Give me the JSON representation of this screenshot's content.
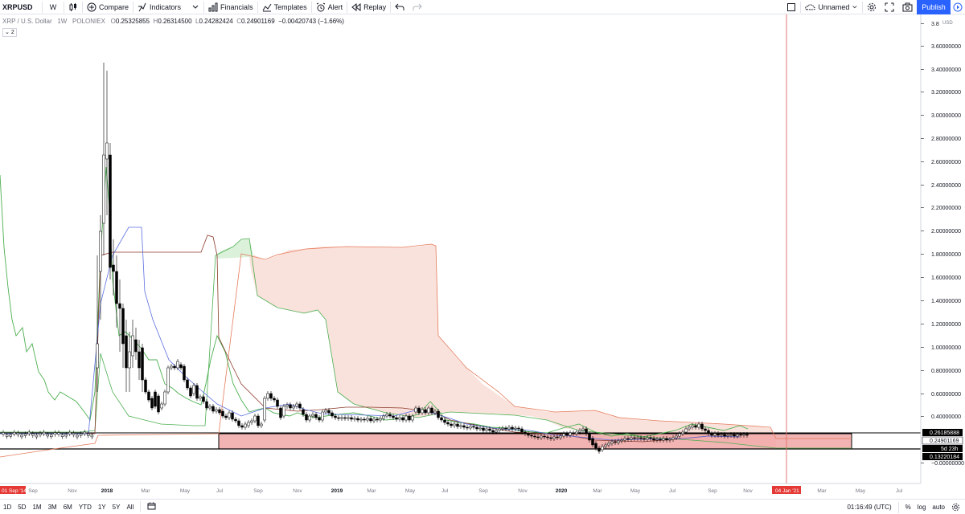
{
  "toolbar": {
    "symbol": "XRPUSD",
    "interval": "W",
    "compare": "Compare",
    "indicators": "Indicators",
    "financials": "Financials",
    "templates": "Templates",
    "alert": "Alert",
    "replay": "Replay",
    "layout_name": "Unnamed",
    "publish": "Publish"
  },
  "legend": {
    "title": "XRP / U.S. Dollar",
    "interval": "1W",
    "exchange": "POLONIEX",
    "o_label": "O",
    "o": "0.25325855",
    "h_label": "H",
    "h": "0.26314500",
    "l_label": "L",
    "l": "0.24282424",
    "c_label": "C",
    "c": "0.24901169",
    "change": "−0.00420743 (−1.66%)",
    "badge": "2"
  },
  "price_axis": {
    "currency": "USD",
    "labels": [
      "3.8",
      "3.60000000",
      "3.40000000",
      "3.20000000",
      "3.00000000",
      "2.80000000",
      "2.60000000",
      "2.40000000",
      "2.20000000",
      "2.00000000",
      "1.80000000",
      "1.60000000",
      "1.40000000",
      "1.20000000",
      "1.00000000",
      "0.80000000",
      "0.60000000",
      "0.40000000",
      "−0.00000000"
    ],
    "badges": {
      "upper": "0.26185888",
      "last": "0.24901169",
      "countdown": "5d 23h",
      "lower": "0.13220184"
    }
  },
  "time_axis": {
    "labels": [
      "Sep",
      "Nov",
      "2018",
      "Mar",
      "May",
      "Jul",
      "Sep",
      "Nov",
      "2019",
      "Mar",
      "May",
      "Jul",
      "Sep",
      "Nov",
      "2020",
      "Mar",
      "May",
      "Jul",
      "Sep",
      "Nov",
      "Mar",
      "May",
      "Jul"
    ],
    "start_badge": "01 Sep '14",
    "cursor_badge": "04 Jan '21"
  },
  "bottombar": {
    "ranges": [
      "1D",
      "5D",
      "1M",
      "3M",
      "6M",
      "YTD",
      "1Y",
      "5Y",
      "All"
    ],
    "time": "01:16:49 (UTC)",
    "percent": "%",
    "log": "log",
    "auto": "auto"
  },
  "colors": {
    "accent": "#2962ff",
    "cloud_bear": "#f4c7bd",
    "zone": "#f0a6a6",
    "cursor": "#e57373",
    "candle": "#000000",
    "tenkan": "#5b6ee1",
    "kijun": "#8a3a2a",
    "chikou": "#4caf50",
    "span_a": "#4caf50",
    "span_b": "#e57b5b"
  },
  "icons": {
    "compare": "plus-circle-icon",
    "indicators": "indicator-icon",
    "financials": "financials-icon",
    "templates": "templates-icon",
    "alert": "alarm-clock-icon",
    "replay": "replay-icon",
    "undo": "undo-icon",
    "redo": "redo-icon",
    "settings": "gear-icon",
    "fullscreen": "fullscreen-icon",
    "snapshot": "camera-icon"
  }
}
